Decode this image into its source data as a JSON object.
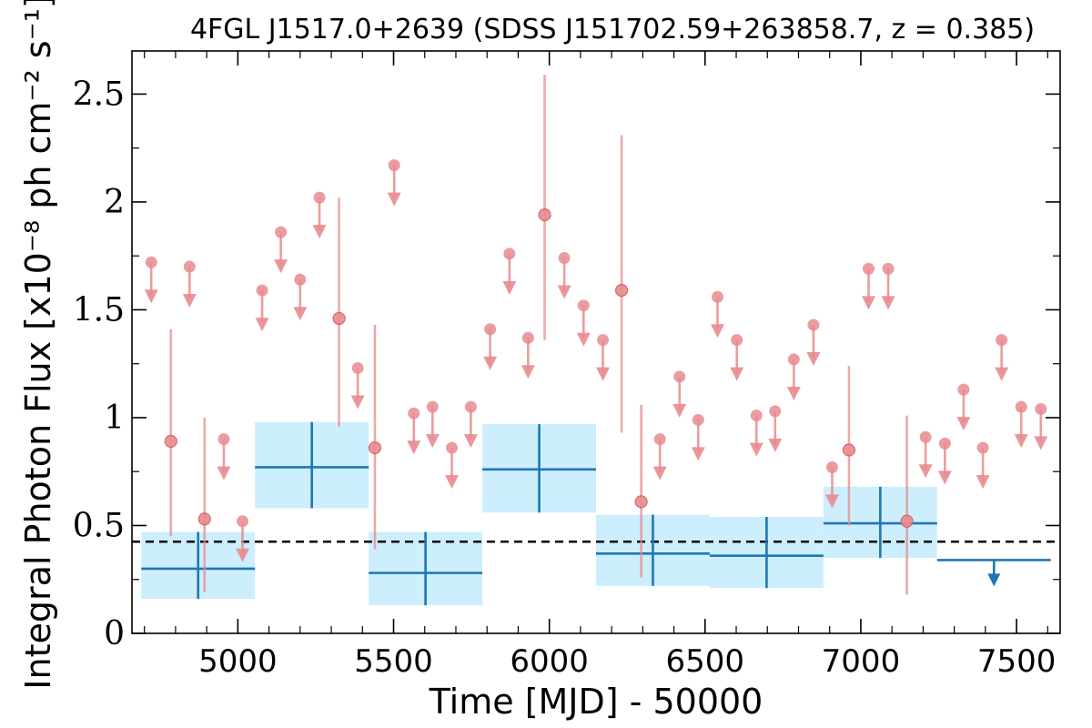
{
  "chart_data": {
    "type": "scatter",
    "title": "4FGL J1517.0+2639 (SDSS J151702.59+263858.7, z = 0.385)",
    "xlabel": "Time [MJD] - 50000",
    "ylabel": "Integral Photon Flux [x10⁻⁸ ph cm⁻² s⁻¹]",
    "xlim": [
      4660,
      7640
    ],
    "ylim": [
      0,
      2.7
    ],
    "xticks": [
      "5000",
      "5500",
      "6000",
      "6500",
      "7000",
      "7500"
    ],
    "xtick_values": [
      5000,
      5500,
      6000,
      6500,
      7000,
      7500
    ],
    "yticks": [
      "0",
      "0.5",
      "1",
      "1.5",
      "2",
      "2.5"
    ],
    "ytick_values": [
      0,
      0.5,
      1,
      1.5,
      2,
      2.5
    ],
    "mean_flux": 0.425,
    "colors": {
      "short_bins": "#e88b8f",
      "long_bins": "#1f77b4",
      "long_bins_fill": "#cdeefd",
      "mean_line": "#000000"
    },
    "short_bin_detections": [
      {
        "x": 4785,
        "y": 0.89,
        "lo": 0.45,
        "hi": 1.41
      },
      {
        "x": 4893,
        "y": 0.53,
        "lo": 0.19,
        "hi": 1.0
      },
      {
        "x": 5325,
        "y": 1.46,
        "lo": 0.96,
        "hi": 2.02
      },
      {
        "x": 5440,
        "y": 0.86,
        "lo": 0.39,
        "hi": 1.43
      },
      {
        "x": 5985,
        "y": 1.94,
        "lo": 1.36,
        "hi": 2.59
      },
      {
        "x": 6232,
        "y": 1.59,
        "lo": 0.93,
        "hi": 2.31
      },
      {
        "x": 6295,
        "y": 0.61,
        "lo": 0.26,
        "hi": 1.06
      },
      {
        "x": 6962,
        "y": 0.85,
        "lo": 0.5,
        "hi": 1.24
      },
      {
        "x": 7148,
        "y": 0.52,
        "lo": 0.18,
        "hi": 1.01
      }
    ],
    "short_bin_upper_limits": [
      {
        "x": 4722,
        "y": 1.72
      },
      {
        "x": 4845,
        "y": 1.7
      },
      {
        "x": 4955,
        "y": 0.9
      },
      {
        "x": 5015,
        "y": 0.52
      },
      {
        "x": 5078,
        "y": 1.59
      },
      {
        "x": 5138,
        "y": 1.86
      },
      {
        "x": 5200,
        "y": 1.64
      },
      {
        "x": 5262,
        "y": 2.02
      },
      {
        "x": 5385,
        "y": 1.23
      },
      {
        "x": 5502,
        "y": 2.17
      },
      {
        "x": 5565,
        "y": 1.02
      },
      {
        "x": 5625,
        "y": 1.05
      },
      {
        "x": 5687,
        "y": 0.86
      },
      {
        "x": 5748,
        "y": 1.05
      },
      {
        "x": 5810,
        "y": 1.41
      },
      {
        "x": 5872,
        "y": 1.76
      },
      {
        "x": 5932,
        "y": 1.37
      },
      {
        "x": 6048,
        "y": 1.74
      },
      {
        "x": 6110,
        "y": 1.52
      },
      {
        "x": 6172,
        "y": 1.36
      },
      {
        "x": 6355,
        "y": 0.9
      },
      {
        "x": 6418,
        "y": 1.19
      },
      {
        "x": 6478,
        "y": 0.99
      },
      {
        "x": 6540,
        "y": 1.56
      },
      {
        "x": 6602,
        "y": 1.36
      },
      {
        "x": 6665,
        "y": 1.01
      },
      {
        "x": 6725,
        "y": 1.03
      },
      {
        "x": 6785,
        "y": 1.27
      },
      {
        "x": 6848,
        "y": 1.43
      },
      {
        "x": 6908,
        "y": 0.77
      },
      {
        "x": 7025,
        "y": 1.69
      },
      {
        "x": 7088,
        "y": 1.69
      },
      {
        "x": 7208,
        "y": 0.91
      },
      {
        "x": 7270,
        "y": 0.88
      },
      {
        "x": 7330,
        "y": 1.13
      },
      {
        "x": 7392,
        "y": 0.86
      },
      {
        "x": 7452,
        "y": 1.36
      },
      {
        "x": 7515,
        "y": 1.05
      },
      {
        "x": 7578,
        "y": 1.04
      }
    ],
    "long_bins": [
      {
        "x0": 4690,
        "x1": 5055,
        "y": 0.3,
        "lo": 0.16,
        "hi": 0.47
      },
      {
        "x0": 5055,
        "x1": 5420,
        "y": 0.77,
        "lo": 0.58,
        "hi": 0.98
      },
      {
        "x0": 5420,
        "x1": 5785,
        "y": 0.28,
        "lo": 0.13,
        "hi": 0.47
      },
      {
        "x0": 5785,
        "x1": 6150,
        "y": 0.76,
        "lo": 0.56,
        "hi": 0.97
      },
      {
        "x0": 6150,
        "x1": 6515,
        "y": 0.37,
        "lo": 0.22,
        "hi": 0.55
      },
      {
        "x0": 6515,
        "x1": 6880,
        "y": 0.36,
        "lo": 0.21,
        "hi": 0.54
      },
      {
        "x0": 6880,
        "x1": 7245,
        "y": 0.51,
        "lo": 0.35,
        "hi": 0.68
      }
    ],
    "long_bin_upper_limits": [
      {
        "x0": 7245,
        "x1": 7610,
        "y": 0.34
      }
    ]
  }
}
